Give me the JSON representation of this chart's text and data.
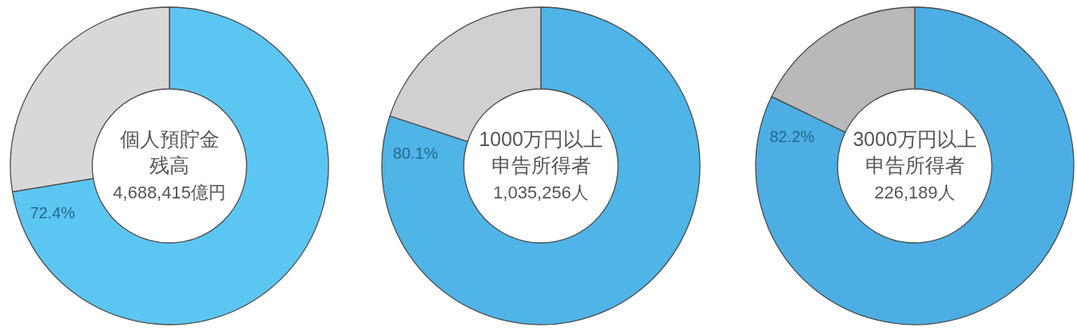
{
  "chart_data": [
    {
      "type": "donut",
      "title": "個人預貯金",
      "subtitle": "残高",
      "annotations": [
        "4,688,415億円"
      ],
      "categories": [
        null,
        null
      ],
      "values": [
        72.4,
        27.6
      ],
      "colors": [
        "#5cc6f2",
        "#d8d8d8"
      ],
      "value_labels": [
        "72.4%",
        null
      ]
    },
    {
      "type": "donut",
      "title": "1000万円以上",
      "subtitle": "申告所得者",
      "annotations": [
        "1,035,256人"
      ],
      "categories": [
        null,
        null
      ],
      "values": [
        80.1,
        19.9
      ],
      "colors": [
        "#4fb4e6",
        "#d0d0d0"
      ],
      "value_labels": [
        "80.1%",
        null
      ]
    },
    {
      "type": "donut",
      "title": "3000万円以上",
      "subtitle": "申告所得者",
      "annotations": [
        "226,189人"
      ],
      "categories": [
        null,
        null
      ],
      "values": [
        82.2,
        17.8
      ],
      "colors": [
        "#4caee2",
        "#b9b9b9"
      ],
      "value_labels": [
        "82.2%",
        null
      ]
    }
  ]
}
